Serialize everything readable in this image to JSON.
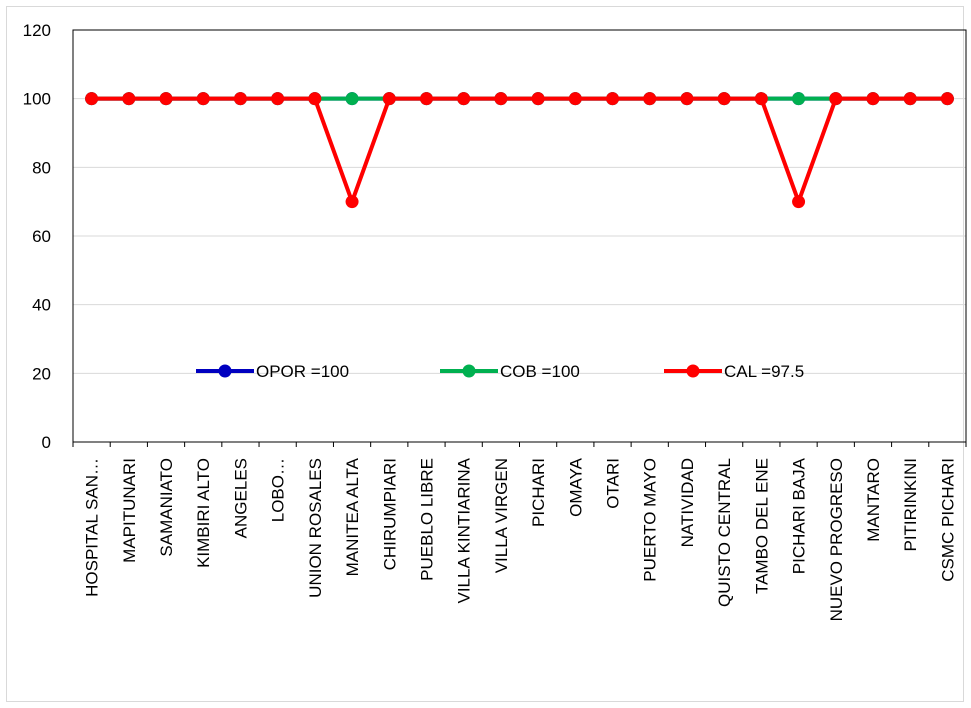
{
  "chart_data": {
    "type": "line",
    "title": "",
    "xlabel": "",
    "ylabel": "",
    "ylim": [
      0,
      120
    ],
    "yticks": [
      0,
      20,
      40,
      60,
      80,
      100,
      120
    ],
    "grid": true,
    "legend_position": "center",
    "categories": [
      "HOSPITAL SAN…",
      "MAPITUNARI",
      "SAMANIATO",
      "KIMBIRI ALTO",
      "ANGELES",
      "LOBO…",
      "UNION ROSALES",
      "MANITEA ALTA",
      "CHIRUMPIARI",
      "PUEBLO LIBRE",
      "VILLA KINTIARINA",
      "VILLA VIRGEN",
      "PICHARI",
      "OMAYA",
      "OTARI",
      "PUERTO MAYO",
      "NATIVIDAD",
      "QUISTO CENTRAL",
      "TAMBO DEL ENE",
      "PICHARI BAJA",
      "NUEVO PROGRESO",
      "MANTARO",
      "PITIRINKINI",
      "CSMC PICHARI"
    ],
    "series": [
      {
        "name": "OPOR =100",
        "color": "#0000c0",
        "values": [
          100,
          100,
          100,
          100,
          100,
          100,
          100,
          100,
          100,
          100,
          100,
          100,
          100,
          100,
          100,
          100,
          100,
          100,
          100,
          100,
          100,
          100,
          100,
          100
        ]
      },
      {
        "name": "COB =100",
        "color": "#00b050",
        "values": [
          100,
          100,
          100,
          100,
          100,
          100,
          100,
          100,
          100,
          100,
          100,
          100,
          100,
          100,
          100,
          100,
          100,
          100,
          100,
          100,
          100,
          100,
          100,
          100
        ]
      },
      {
        "name": "CAL =97.5",
        "color": "#ff0000",
        "values": [
          100,
          100,
          100,
          100,
          100,
          100,
          100,
          70,
          100,
          100,
          100,
          100,
          100,
          100,
          100,
          100,
          100,
          100,
          100,
          70,
          100,
          100,
          100,
          100
        ]
      }
    ]
  }
}
